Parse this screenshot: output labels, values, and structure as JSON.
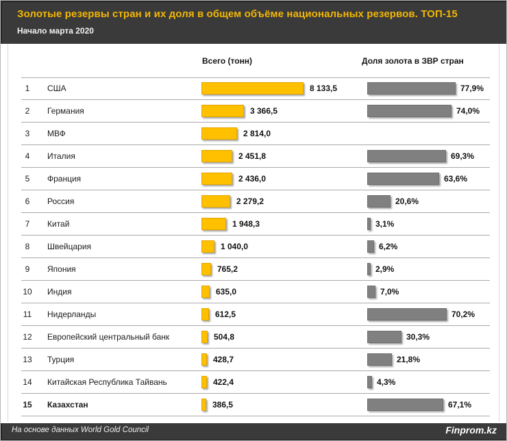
{
  "header": {
    "title": "Золотые резервы стран  и их доля в общем объёме национальных резервов. ТОП-15",
    "subtitle": "Начало марта  2020"
  },
  "columns": {
    "total": "Всего (тонн)",
    "share": "Доля золота в ЗВР стран"
  },
  "footer": {
    "source": "На основе данных  World Gold Council",
    "brand": "Finprom.kz"
  },
  "colors": {
    "gold_bar": "#FFC000",
    "gray_bar": "#808080",
    "header_bg": "#3A3A3A",
    "title_text": "#F2B705",
    "separator": "#A9A9A9"
  },
  "chart_data": {
    "type": "bar",
    "title": "Золотые резервы стран  и их доля в общем объёме национальных резервов. ТОП-15",
    "subtitle": "Начало марта  2020",
    "orientation": "horizontal",
    "legend_position": "none",
    "grid": false,
    "series_names": [
      "Всего (тонн)",
      "Доля золота в ЗВР стран"
    ],
    "tons_axis_max": 8133.5,
    "share_axis_max": 77.9,
    "rows": [
      {
        "rank": "1",
        "country": "США",
        "tons": 8133.5,
        "tons_label": "8 133,5",
        "share": 77.9,
        "share_label": "77,9%",
        "bold": false
      },
      {
        "rank": "2",
        "country": "Германия",
        "tons": 3366.5,
        "tons_label": "3 366,5",
        "share": 74.0,
        "share_label": "74,0%",
        "bold": false
      },
      {
        "rank": "3",
        "country": "МВФ",
        "tons": 2814.0,
        "tons_label": "2 814,0",
        "share": null,
        "share_label": "",
        "bold": false
      },
      {
        "rank": "4",
        "country": "Италия",
        "tons": 2451.8,
        "tons_label": "2 451,8",
        "share": 69.3,
        "share_label": "69,3%",
        "bold": false
      },
      {
        "rank": "5",
        "country": "Франция",
        "tons": 2436.0,
        "tons_label": "2 436,0",
        "share": 63.6,
        "share_label": "63,6%",
        "bold": false
      },
      {
        "rank": "6",
        "country": "Россия",
        "tons": 2279.2,
        "tons_label": "2 279,2",
        "share": 20.6,
        "share_label": "20,6%",
        "bold": false
      },
      {
        "rank": "7",
        "country": "Китай",
        "tons": 1948.3,
        "tons_label": "1 948,3",
        "share": 3.1,
        "share_label": "3,1%",
        "bold": false
      },
      {
        "rank": "8",
        "country": "Швейцария",
        "tons": 1040.0,
        "tons_label": "1 040,0",
        "share": 6.2,
        "share_label": "6,2%",
        "bold": false
      },
      {
        "rank": "9",
        "country": "Япония",
        "tons": 765.2,
        "tons_label": "765,2",
        "share": 2.9,
        "share_label": "2,9%",
        "bold": false
      },
      {
        "rank": "10",
        "country": "Индия",
        "tons": 635.0,
        "tons_label": "635,0",
        "share": 7.0,
        "share_label": "7,0%",
        "bold": false
      },
      {
        "rank": "11",
        "country": "Нидерланды",
        "tons": 612.5,
        "tons_label": "612,5",
        "share": 70.2,
        "share_label": "70,2%",
        "bold": false
      },
      {
        "rank": "12",
        "country": "Европейский центральный банк",
        "tons": 504.8,
        "tons_label": "504,8",
        "share": 30.3,
        "share_label": "30,3%",
        "bold": false
      },
      {
        "rank": "13",
        "country": "Турция",
        "tons": 428.7,
        "tons_label": "428,7",
        "share": 21.8,
        "share_label": "21,8%",
        "bold": false
      },
      {
        "rank": "14",
        "country": "Китайская Республика Тайвань",
        "tons": 422.4,
        "tons_label": "422,4",
        "share": 4.3,
        "share_label": "4,3%",
        "bold": false
      },
      {
        "rank": "15",
        "country": "Казахстан",
        "tons": 386.5,
        "tons_label": "386,5",
        "share": 67.1,
        "share_label": "67,1%",
        "bold": true
      }
    ]
  }
}
